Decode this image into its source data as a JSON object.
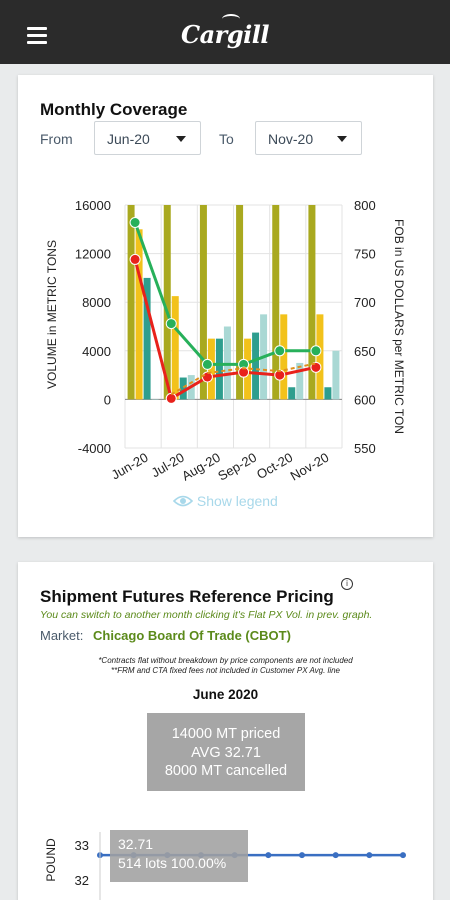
{
  "header": {
    "brand": "Cargill",
    "menu_icon": "hamburger-menu-icon"
  },
  "coverage": {
    "title": "Monthly Coverage",
    "from_label": "From",
    "from_value": "Jun-20",
    "to_label": "To",
    "to_value": "Nov-20",
    "show_legend": "Show legend",
    "legend_icon": "eye-icon",
    "colors": {
      "olive": "#a9a91f",
      "yellow": "#f2c21b",
      "teal": "#2e9e8e",
      "lightteal": "#a9d8d4",
      "green": "#27b05a",
      "red": "#e8221b",
      "orange": "#e0901e",
      "purple": "#6b2a8c"
    }
  },
  "chart_data": {
    "type": "bar",
    "categories": [
      "Jun-20",
      "Jul-20",
      "Aug-20",
      "Sep-20",
      "Oct-20",
      "Nov-20"
    ],
    "ylabel": "VOLUME in METRIC TONS",
    "y2label": "FOB in US DOLLARS per METRIC TON",
    "ylim": [
      -4000,
      16000
    ],
    "yticks": [
      "16000",
      "12000",
      "8000",
      "4000",
      "0",
      "-4000"
    ],
    "y2lim": [
      550,
      800
    ],
    "y2ticks": [
      "800",
      "750",
      "700",
      "650",
      "600",
      "550"
    ],
    "bar_series": [
      {
        "values": [
          16000,
          16000,
          16000,
          16000,
          16000,
          16000
        ]
      },
      {
        "values": [
          14000,
          8500,
          5000,
          5000,
          7000,
          7000
        ]
      },
      {
        "values": [
          10000,
          1800,
          5000,
          5500,
          1000,
          1000
        ]
      },
      {
        "values": [
          0,
          2000,
          6000,
          7000,
          3000,
          4000
        ]
      }
    ],
    "line_series": [
      {
        "values": [
          782,
          678,
          636,
          636,
          650,
          650
        ]
      },
      {
        "values": [
          744,
          601,
          623,
          628,
          625,
          633
        ]
      }
    ]
  },
  "futures": {
    "title": "Shipment Futures Reference Pricing",
    "info_icon": "info-icon",
    "subtitle": "You can switch to another month clicking it's Flat PX Vol. in prev. graph.",
    "market_label": "Market:",
    "market_value": "Chicago Board Of Trade (CBOT)",
    "note1": "*Contracts flat without breakdown by price components are not included",
    "note2": "**FRM and CTA fixed fees not included in Customer PX Avg. line",
    "month": "June 2020",
    "summary_line1": "14000 MT priced",
    "summary_line2": "AVG 32.71",
    "summary_line3": "8000 MT cancelled",
    "tooltip_line1": "32.71",
    "tooltip_line2": "514 lots 100.00%",
    "ylabel": "POUND",
    "yticks": [
      "33",
      "32"
    ],
    "price_series": [
      32.71,
      32.71,
      32.71,
      32.71,
      32.71,
      32.71,
      32.71,
      32.71,
      32.71,
      32.71
    ]
  }
}
